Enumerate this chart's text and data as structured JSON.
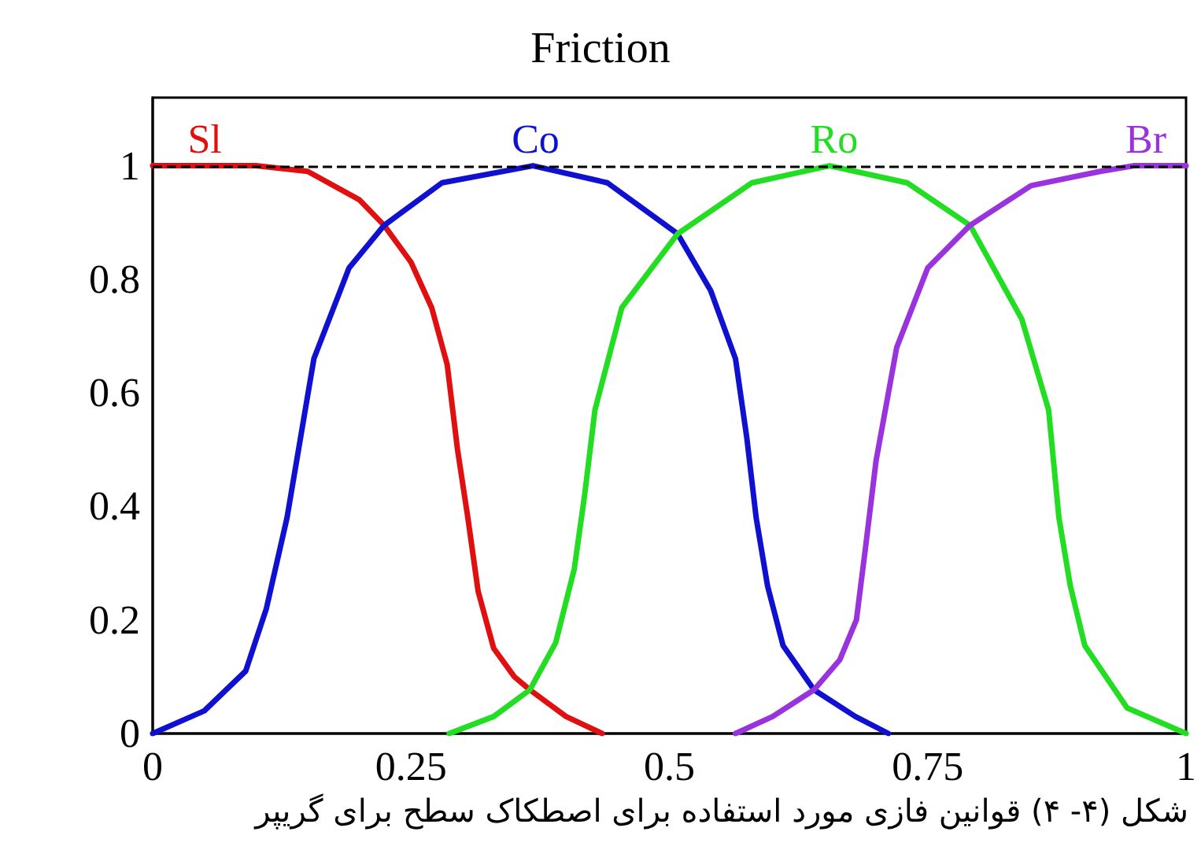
{
  "chart_data": {
    "type": "line",
    "title": "Friction",
    "annotations": [
      "شکل (۴- ۴) قوانین فازی مورد استفاده برای اصطکاک سطح برای گریپر"
    ],
    "xlim": [
      0,
      1
    ],
    "xticks": [
      0,
      0.25,
      0.5,
      0.75,
      1
    ],
    "ylim": [
      0,
      1.12
    ],
    "yticks": [
      0,
      0.2,
      0.4,
      0.6,
      0.8,
      1
    ],
    "grid": false,
    "legend": false,
    "marker": "none",
    "line_style": "solid",
    "ref_lines": [
      {
        "axis": "y",
        "value": 1,
        "color": "#000000",
        "line_style": "dashed"
      }
    ],
    "series": [
      {
        "name": "Sl",
        "color": "#e01010",
        "x": [
          0,
          0.1,
          0.15,
          0.2,
          0.224,
          0.25,
          0.27,
          0.285,
          0.295,
          0.305,
          0.315,
          0.33,
          0.35,
          0.365,
          0.4,
          0.435
        ],
        "values": [
          1,
          1,
          0.99,
          0.94,
          0.895,
          0.83,
          0.75,
          0.65,
          0.5,
          0.38,
          0.25,
          0.15,
          0.1,
          0.077,
          0.03,
          0
        ]
      },
      {
        "name": "Co",
        "color": "#1010d0",
        "x": [
          0,
          0.05,
          0.09,
          0.11,
          0.13,
          0.156,
          0.19,
          0.224,
          0.28,
          0.368,
          0.44,
          0.508,
          0.54,
          0.564,
          0.575,
          0.584,
          0.595,
          0.61,
          0.64,
          0.68,
          0.712
        ],
        "values": [
          0,
          0.04,
          0.11,
          0.22,
          0.38,
          0.66,
          0.82,
          0.895,
          0.97,
          1,
          0.97,
          0.88,
          0.78,
          0.66,
          0.52,
          0.38,
          0.26,
          0.155,
          0.077,
          0.03,
          0
        ]
      },
      {
        "name": "Ro",
        "color": "#22dd22",
        "x": [
          0.287,
          0.33,
          0.365,
          0.39,
          0.408,
          0.418,
          0.428,
          0.454,
          0.508,
          0.58,
          0.655,
          0.73,
          0.791,
          0.841,
          0.867,
          0.877,
          0.888,
          0.902,
          0.943,
          1
        ],
        "values": [
          0,
          0.03,
          0.077,
          0.16,
          0.29,
          0.42,
          0.57,
          0.75,
          0.88,
          0.97,
          1,
          0.97,
          0.895,
          0.73,
          0.57,
          0.38,
          0.26,
          0.155,
          0.045,
          0
        ]
      },
      {
        "name": "Br",
        "color": "#9933dd",
        "x": [
          0.564,
          0.6,
          0.64,
          0.665,
          0.681,
          0.69,
          0.7,
          0.72,
          0.75,
          0.791,
          0.85,
          0.917,
          0.95,
          1
        ],
        "values": [
          0,
          0.03,
          0.077,
          0.13,
          0.2,
          0.33,
          0.48,
          0.68,
          0.82,
          0.895,
          0.965,
          0.99,
          1,
          1
        ]
      }
    ]
  }
}
